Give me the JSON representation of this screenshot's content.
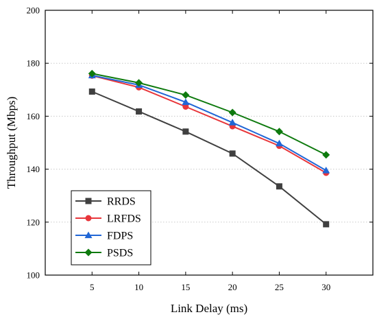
{
  "chart_data": {
    "type": "line",
    "title": "",
    "xlabel": "Link Delay (ms)",
    "ylabel": "Throughput (Mbps)",
    "x": [
      5,
      10,
      15,
      20,
      25,
      30
    ],
    "xlim": [
      0,
      35
    ],
    "ylim": [
      100,
      200
    ],
    "x_ticks": [
      "5",
      "10",
      "15",
      "20",
      "25",
      "30"
    ],
    "y_ticks": [
      "100",
      "120",
      "140",
      "160",
      "180",
      "200"
    ],
    "grid": "horizontal dotted",
    "legend_position": "bottom-left",
    "series": [
      {
        "name": "RRDS",
        "color": "#404040",
        "marker": "square",
        "values": [
          169.3,
          161.8,
          154.2,
          145.9,
          133.5,
          119.2
        ]
      },
      {
        "name": "LRFDS",
        "color": "#e8363b",
        "marker": "circle",
        "values": [
          175.3,
          170.9,
          163.6,
          156.2,
          148.8,
          138.6
        ]
      },
      {
        "name": "FDPS",
        "color": "#2066d6",
        "marker": "triangle",
        "values": [
          175.4,
          171.8,
          165.3,
          157.6,
          149.7,
          139.5
        ]
      },
      {
        "name": "PSDS",
        "color": "#0e7a0e",
        "marker": "diamond",
        "values": [
          176.1,
          172.6,
          168.0,
          161.4,
          154.2,
          145.4
        ]
      }
    ]
  }
}
